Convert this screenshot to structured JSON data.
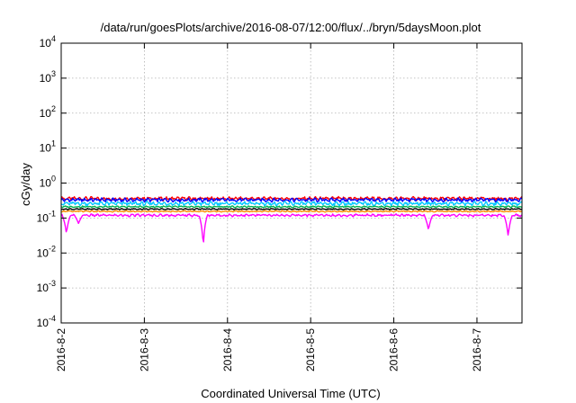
{
  "chart_data": {
    "type": "line",
    "title": "/data/run/goesPlots/archive/2016-08-07/12:00/flux/../bryn/5daysMoon.plot",
    "xlabel": "Coordinated Universal Time (UTC)",
    "ylabel": "cGy/day",
    "yscale": "log",
    "ylim": [
      0.0001,
      10000
    ],
    "xlim": [
      "2016-08-02T00:00",
      "2016-08-07T13:00"
    ],
    "grid": true,
    "legend": "none",
    "x_tick_labels": [
      "2016-8-2",
      "2016-8-3",
      "2016-8-4",
      "2016-8-5",
      "2016-8-6",
      "2016-8-7"
    ],
    "y_ticks": [
      {
        "base": "10",
        "exp": "-4",
        "value": 0.0001
      },
      {
        "base": "10",
        "exp": "-3",
        "value": 0.001
      },
      {
        "base": "10",
        "exp": "-2",
        "value": 0.01
      },
      {
        "base": "10",
        "exp": "-1",
        "value": 0.1
      },
      {
        "base": "10",
        "exp": "0",
        "value": 1
      },
      {
        "base": "10",
        "exp": "1",
        "value": 10
      },
      {
        "base": "10",
        "exp": "2",
        "value": 100
      },
      {
        "base": "10",
        "exp": "3",
        "value": 1000
      },
      {
        "base": "10",
        "exp": "4",
        "value": 10000
      }
    ],
    "series": [
      {
        "color": "#ff0000",
        "level": 0.36,
        "amp": 0.12,
        "dips": []
      },
      {
        "color": "#0000ff",
        "level": 0.33,
        "amp": 0.12,
        "dips": []
      },
      {
        "color": "#00c8ff",
        "level": 0.26,
        "amp": 0.13,
        "dips": []
      },
      {
        "color": "#00b050",
        "level": 0.21,
        "amp": 0.05,
        "dips": []
      },
      {
        "color": "#000000",
        "level": 0.18,
        "amp": 0.04,
        "dips": []
      },
      {
        "color": "#ff8c00",
        "level": 0.155,
        "amp": 0.04,
        "dips": []
      },
      {
        "color": "#ff00ff",
        "level": 0.12,
        "amp": 0.08,
        "dips": [
          {
            "x": "2016-08-02T01:30",
            "y": 0.035
          },
          {
            "x": "2016-08-02T05:00",
            "y": 0.07
          },
          {
            "x": "2016-08-03T17:00",
            "y": 0.013
          },
          {
            "x": "2016-08-06T10:00",
            "y": 0.045
          },
          {
            "x": "2016-08-07T09:00",
            "y": 0.03
          }
        ]
      }
    ]
  }
}
